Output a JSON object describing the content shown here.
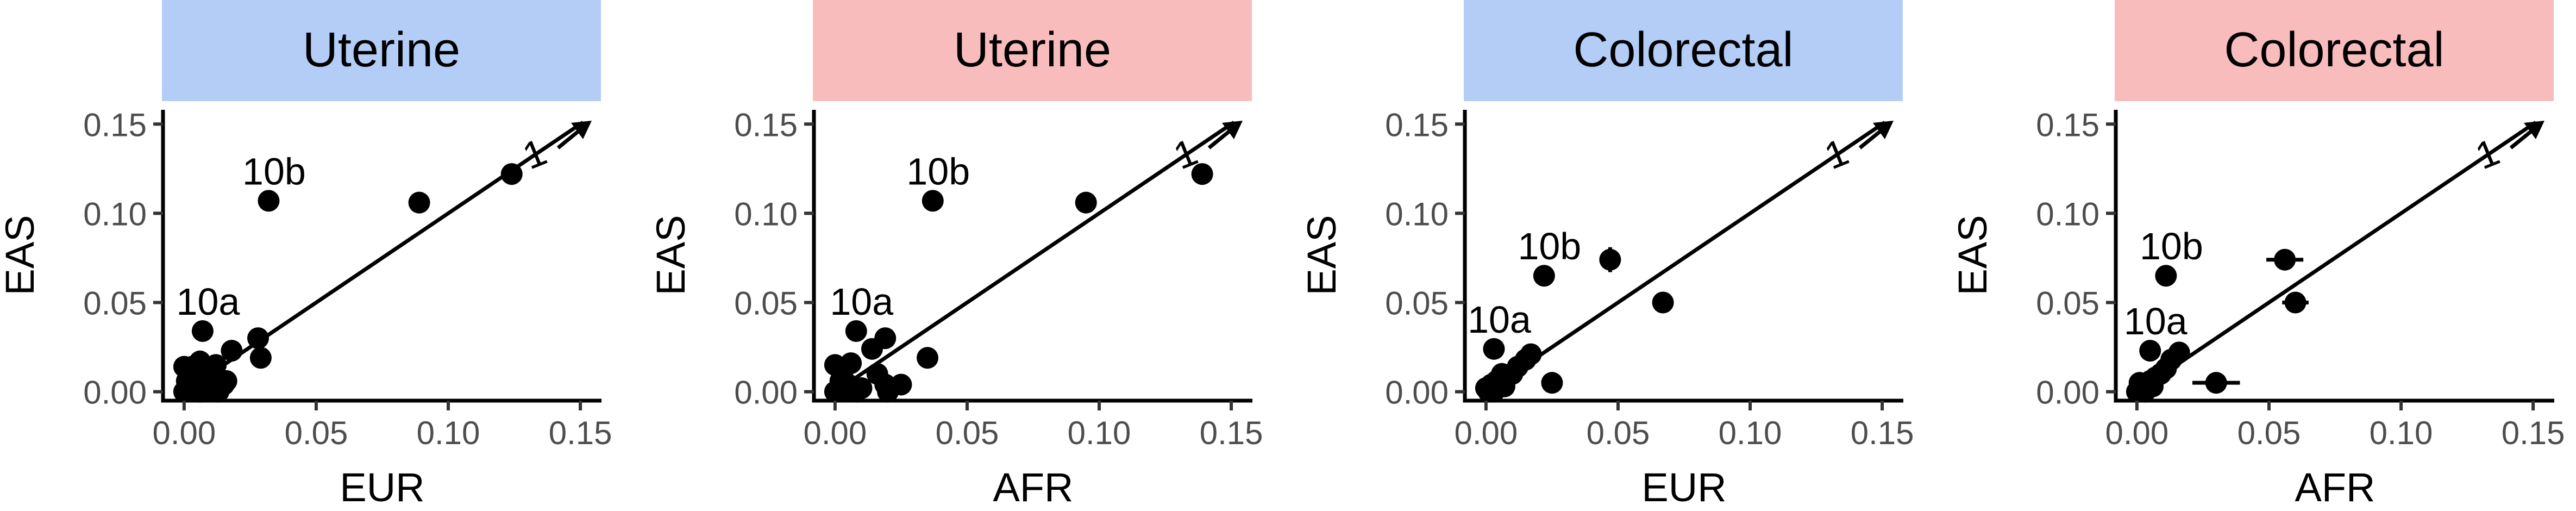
{
  "figure": {
    "ylabel": "EAS",
    "tick_labels": [
      "0.00",
      "0.05",
      "0.10",
      "0.15"
    ]
  },
  "chart_data": [
    {
      "type": "scatter",
      "title": "Uterine",
      "strip_color": "#b3cdf7",
      "xlabel": "EUR",
      "ylabel": "EAS",
      "xlim": [
        -0.008,
        0.158
      ],
      "ylim": [
        -0.005,
        0.158
      ],
      "ticks": [
        0,
        0.05,
        0.1,
        0.15
      ],
      "grid": false,
      "reference_line": {
        "slope": 1,
        "label": "1"
      },
      "points": [
        {
          "x": 0.124,
          "y": 0.122
        },
        {
          "x": 0.089,
          "y": 0.106
        },
        {
          "x": 0.032,
          "y": 0.107
        },
        {
          "x": 0.007,
          "y": 0.034
        },
        {
          "x": 0.028,
          "y": 0.03
        },
        {
          "x": 0.029,
          "y": 0.019
        },
        {
          "x": 0.018,
          "y": 0.023
        },
        {
          "x": 0.012,
          "y": 0.015
        },
        {
          "x": 0.01,
          "y": 0.009
        },
        {
          "x": 0.006,
          "y": 0.017
        },
        {
          "x": 0.003,
          "y": 0.014
        },
        {
          "x": 0.0,
          "y": 0.014
        },
        {
          "x": 0.001,
          "y": 0.006
        },
        {
          "x": 0.004,
          "y": 0.004
        },
        {
          "x": 0.008,
          "y": 0.005
        },
        {
          "x": 0.015,
          "y": 0.004
        },
        {
          "x": 0.013,
          "y": 0.0
        },
        {
          "x": 0.016,
          "y": 0.006
        },
        {
          "x": 0.002,
          "y": 0.001
        },
        {
          "x": 0.006,
          "y": 0.0
        },
        {
          "x": 0.0,
          "y": 0.0
        },
        {
          "x": 0.01,
          "y": 0.002
        }
      ],
      "annotations": [
        {
          "text": "10b",
          "x": 0.032,
          "y": 0.107
        },
        {
          "text": "10a",
          "x": 0.007,
          "y": 0.034
        }
      ]
    },
    {
      "type": "scatter",
      "title": "Uterine",
      "strip_color": "#f9bcbc",
      "xlabel": "AFR",
      "ylabel": "EAS",
      "xlim": [
        -0.008,
        0.158
      ],
      "ylim": [
        -0.005,
        0.158
      ],
      "ticks": [
        0,
        0.05,
        0.1,
        0.15
      ],
      "grid": false,
      "reference_line": {
        "slope": 1,
        "label": "1"
      },
      "points": [
        {
          "x": 0.139,
          "y": 0.122
        },
        {
          "x": 0.095,
          "y": 0.106
        },
        {
          "x": 0.037,
          "y": 0.107
        },
        {
          "x": 0.008,
          "y": 0.034
        },
        {
          "x": 0.019,
          "y": 0.03
        },
        {
          "x": 0.035,
          "y": 0.019
        },
        {
          "x": 0.014,
          "y": 0.024
        },
        {
          "x": 0.006,
          "y": 0.016
        },
        {
          "x": 0.0,
          "y": 0.015
        },
        {
          "x": 0.003,
          "y": 0.012
        },
        {
          "x": 0.016,
          "y": 0.01
        },
        {
          "x": 0.019,
          "y": 0.004
        },
        {
          "x": 0.025,
          "y": 0.004
        },
        {
          "x": 0.002,
          "y": 0.006
        },
        {
          "x": 0.005,
          "y": 0.004
        },
        {
          "x": 0.01,
          "y": 0.002
        },
        {
          "x": 0.0,
          "y": 0.0
        },
        {
          "x": 0.003,
          "y": 0.001
        },
        {
          "x": 0.02,
          "y": 0.0
        },
        {
          "x": 0.008,
          "y": 0.0
        }
      ],
      "annotations": [
        {
          "text": "10b",
          "x": 0.037,
          "y": 0.107
        },
        {
          "text": "10a",
          "x": 0.008,
          "y": 0.034
        }
      ]
    },
    {
      "type": "scatter",
      "title": "Colorectal",
      "strip_color": "#b3cdf7",
      "xlabel": "EUR",
      "ylabel": "EAS",
      "xlim": [
        -0.008,
        0.158
      ],
      "ylim": [
        -0.005,
        0.158
      ],
      "ticks": [
        0,
        0.05,
        0.1,
        0.15
      ],
      "grid": false,
      "reference_line": {
        "slope": 1,
        "label": "1"
      },
      "points": [
        {
          "x": 0.047,
          "y": 0.074,
          "yerr": 0.007
        },
        {
          "x": 0.067,
          "y": 0.05,
          "yerr": 0.005
        },
        {
          "x": 0.022,
          "y": 0.065,
          "yerr": 0.006
        },
        {
          "x": 0.025,
          "y": 0.005
        },
        {
          "x": 0.003,
          "y": 0.024
        },
        {
          "x": 0.017,
          "y": 0.021
        },
        {
          "x": 0.015,
          "y": 0.018
        },
        {
          "x": 0.012,
          "y": 0.014
        },
        {
          "x": 0.01,
          "y": 0.01
        },
        {
          "x": 0.008,
          "y": 0.008
        },
        {
          "x": 0.006,
          "y": 0.01
        },
        {
          "x": 0.004,
          "y": 0.006
        },
        {
          "x": 0.002,
          "y": 0.004
        },
        {
          "x": 0.0,
          "y": 0.002
        },
        {
          "x": 0.003,
          "y": 0.0
        },
        {
          "x": 0.007,
          "y": 0.003
        },
        {
          "x": 0.001,
          "y": 0.0
        }
      ],
      "annotations": [
        {
          "text": "10b",
          "x": 0.022,
          "y": 0.065
        },
        {
          "text": "10a",
          "x": 0.003,
          "y": 0.024
        }
      ]
    },
    {
      "type": "scatter",
      "title": "Colorectal",
      "strip_color": "#f9bcbc",
      "xlabel": "AFR",
      "ylabel": "EAS",
      "xlim": [
        -0.008,
        0.158
      ],
      "ylim": [
        -0.005,
        0.158
      ],
      "ticks": [
        0,
        0.05,
        0.1,
        0.15
      ],
      "grid": false,
      "reference_line": {
        "slope": 1,
        "label": "1"
      },
      "points": [
        {
          "x": 0.056,
          "y": 0.074,
          "xerr": 0.007,
          "yerr": 0.006
        },
        {
          "x": 0.06,
          "y": 0.05,
          "xerr": 0.005
        },
        {
          "x": 0.011,
          "y": 0.065,
          "yerr": 0.006
        },
        {
          "x": 0.03,
          "y": 0.005,
          "xerr": 0.009
        },
        {
          "x": 0.016,
          "y": 0.022
        },
        {
          "x": 0.005,
          "y": 0.023
        },
        {
          "x": 0.013,
          "y": 0.018
        },
        {
          "x": 0.011,
          "y": 0.013
        },
        {
          "x": 0.009,
          "y": 0.01
        },
        {
          "x": 0.007,
          "y": 0.008
        },
        {
          "x": 0.005,
          "y": 0.006
        },
        {
          "x": 0.004,
          "y": 0.004
        },
        {
          "x": 0.002,
          "y": 0.002
        },
        {
          "x": 0.0,
          "y": 0.0
        },
        {
          "x": 0.003,
          "y": 0.0
        },
        {
          "x": 0.001,
          "y": 0.005
        },
        {
          "x": 0.006,
          "y": 0.003
        }
      ],
      "annotations": [
        {
          "text": "10b",
          "x": 0.011,
          "y": 0.065
        },
        {
          "text": "10a",
          "x": 0.005,
          "y": 0.023
        }
      ]
    }
  ]
}
